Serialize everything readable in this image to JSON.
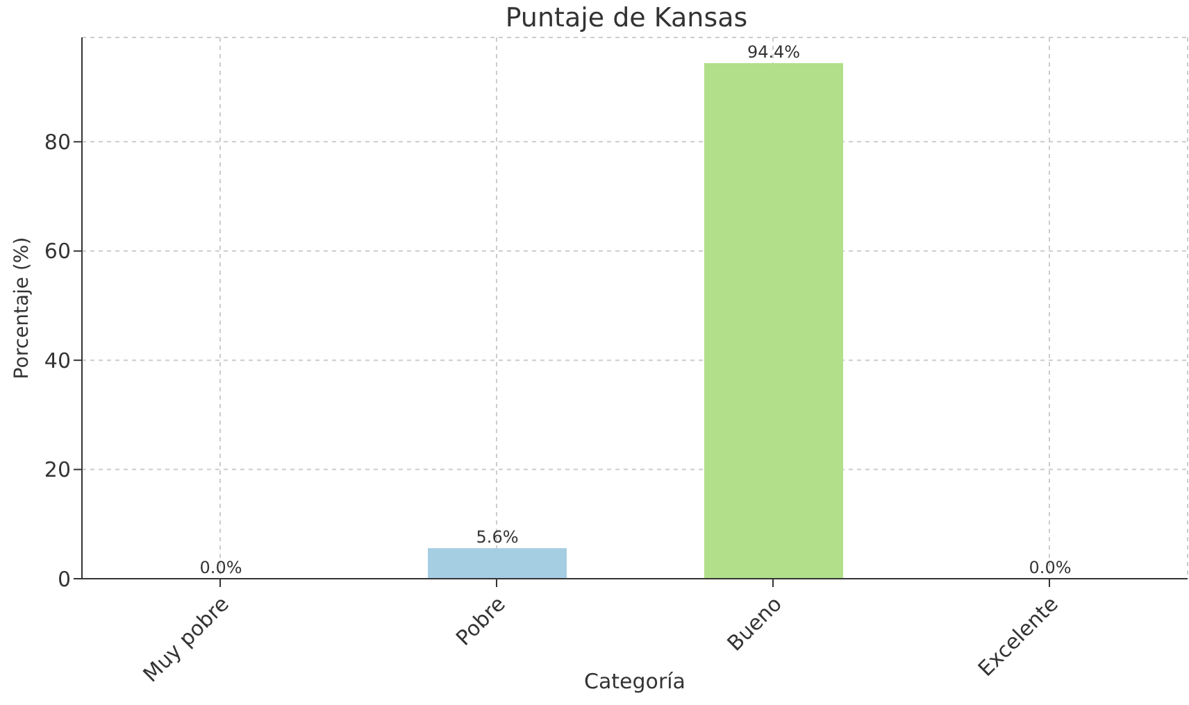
{
  "chart_data": {
    "type": "bar",
    "title": "Puntaje de Kansas",
    "xlabel": "Categoría",
    "ylabel": "Porcentaje (%)",
    "categories": [
      "Muy pobre",
      "Pobre",
      "Bueno",
      "Excelente"
    ],
    "values": [
      0.0,
      5.6,
      94.4,
      0.0
    ],
    "colors": [
      "#1f78b4",
      "#a6cee3",
      "#b2df8a",
      "#33a02c"
    ],
    "value_labels": [
      "0.0%",
      "5.6%",
      "94.4%",
      "0.0%"
    ],
    "ylim": [
      0,
      99.1
    ],
    "yticks": [
      0,
      20,
      40,
      60,
      80
    ],
    "grid": true
  }
}
